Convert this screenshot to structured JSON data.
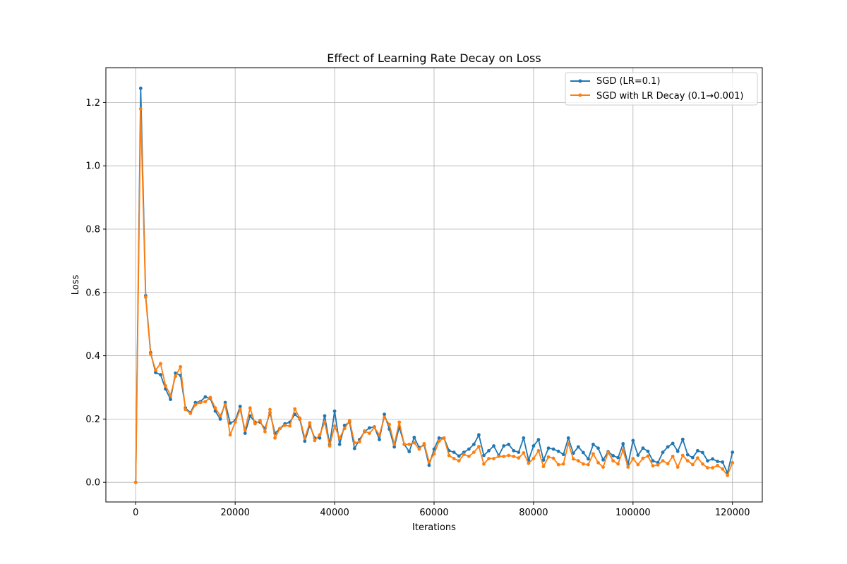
{
  "chart_data": {
    "type": "line",
    "title": "Effect of Learning Rate Decay on Loss",
    "xlabel": "Iterations",
    "ylabel": "Loss",
    "xlim": [
      -6000,
      126000
    ],
    "ylim": [
      -0.062,
      1.31
    ],
    "xticks": [
      0,
      20000,
      40000,
      60000,
      80000,
      100000,
      120000
    ],
    "yticks": [
      0.0,
      0.2,
      0.4,
      0.6,
      0.8,
      1.0,
      1.2
    ],
    "xtick_labels": [
      "0",
      "20000",
      "40000",
      "60000",
      "80000",
      "100000",
      "120000"
    ],
    "ytick_labels": [
      "0.0",
      "0.2",
      "0.4",
      "0.6",
      "0.8",
      "1.0",
      "1.2"
    ],
    "grid": true,
    "legend_position": "top-right",
    "x": [
      0,
      1000,
      2000,
      3000,
      4000,
      5000,
      6000,
      7000,
      8000,
      9000,
      10000,
      11000,
      12000,
      13000,
      14000,
      15000,
      16000,
      17000,
      18000,
      19000,
      20000,
      21000,
      22000,
      23000,
      24000,
      25000,
      26000,
      27000,
      28000,
      29000,
      30000,
      31000,
      32000,
      33000,
      34000,
      35000,
      36000,
      37000,
      38000,
      39000,
      40000,
      41000,
      42000,
      43000,
      44000,
      45000,
      46000,
      47000,
      48000,
      49000,
      50000,
      51000,
      52000,
      53000,
      54000,
      55000,
      56000,
      57000,
      58000,
      59000,
      60000,
      61000,
      62000,
      63000,
      64000,
      65000,
      66000,
      67000,
      68000,
      69000,
      70000,
      71000,
      72000,
      73000,
      74000,
      75000,
      76000,
      77000,
      78000,
      79000,
      80000,
      81000,
      82000,
      83000,
      84000,
      85000,
      86000,
      87000,
      88000,
      89000,
      90000,
      91000,
      92000,
      93000,
      94000,
      95000,
      96000,
      97000,
      98000,
      99000,
      100000,
      101000,
      102000,
      103000,
      104000,
      105000,
      106000,
      107000,
      108000,
      109000,
      110000,
      111000,
      112000,
      113000,
      114000,
      115000,
      116000,
      117000,
      118000,
      119000,
      120000
    ],
    "series": [
      {
        "name": "SGD (LR=0.1)",
        "color": "#1f77b4",
        "values": [
          0.0,
          1.245,
          0.59,
          0.41,
          0.347,
          0.34,
          0.295,
          0.262,
          0.345,
          0.338,
          0.235,
          0.22,
          0.252,
          0.255,
          0.27,
          0.265,
          0.225,
          0.2,
          0.252,
          0.187,
          0.195,
          0.24,
          0.155,
          0.21,
          0.19,
          0.19,
          0.17,
          0.22,
          0.155,
          0.17,
          0.185,
          0.19,
          0.215,
          0.2,
          0.13,
          0.18,
          0.14,
          0.14,
          0.21,
          0.12,
          0.225,
          0.12,
          0.18,
          0.19,
          0.107,
          0.135,
          0.16,
          0.172,
          0.175,
          0.135,
          0.215,
          0.168,
          0.112,
          0.175,
          0.12,
          0.097,
          0.142,
          0.11,
          0.118,
          0.054,
          0.105,
          0.14,
          0.14,
          0.1,
          0.095,
          0.083,
          0.095,
          0.105,
          0.12,
          0.15,
          0.085,
          0.1,
          0.115,
          0.085,
          0.115,
          0.12,
          0.1,
          0.095,
          0.14,
          0.07,
          0.115,
          0.135,
          0.07,
          0.108,
          0.105,
          0.098,
          0.088,
          0.14,
          0.092,
          0.112,
          0.094,
          0.074,
          0.12,
          0.108,
          0.071,
          0.097,
          0.084,
          0.078,
          0.122,
          0.056,
          0.132,
          0.086,
          0.108,
          0.098,
          0.068,
          0.062,
          0.095,
          0.112,
          0.123,
          0.098,
          0.136,
          0.087,
          0.078,
          0.1,
          0.094,
          0.068,
          0.074,
          0.066,
          0.064,
          0.03,
          0.095
        ]
      },
      {
        "name": "SGD with LR Decay (0.1→0.001)",
        "color": "#ff7f0e",
        "values": [
          0.0,
          1.18,
          0.585,
          0.405,
          0.355,
          0.375,
          0.305,
          0.275,
          0.335,
          0.365,
          0.23,
          0.218,
          0.245,
          0.252,
          0.255,
          0.268,
          0.235,
          0.21,
          0.245,
          0.15,
          0.19,
          0.23,
          0.165,
          0.235,
          0.185,
          0.195,
          0.16,
          0.23,
          0.14,
          0.17,
          0.18,
          0.178,
          0.232,
          0.203,
          0.14,
          0.188,
          0.132,
          0.15,
          0.19,
          0.115,
          0.178,
          0.14,
          0.17,
          0.195,
          0.125,
          0.128,
          0.162,
          0.155,
          0.173,
          0.15,
          0.205,
          0.183,
          0.12,
          0.19,
          0.12,
          0.12,
          0.125,
          0.105,
          0.122,
          0.065,
          0.09,
          0.13,
          0.14,
          0.085,
          0.075,
          0.068,
          0.088,
          0.082,
          0.095,
          0.113,
          0.058,
          0.075,
          0.075,
          0.082,
          0.082,
          0.085,
          0.082,
          0.077,
          0.093,
          0.06,
          0.075,
          0.1,
          0.05,
          0.08,
          0.076,
          0.056,
          0.058,
          0.123,
          0.074,
          0.068,
          0.058,
          0.056,
          0.09,
          0.062,
          0.048,
          0.095,
          0.068,
          0.058,
          0.102,
          0.048,
          0.075,
          0.056,
          0.076,
          0.083,
          0.052,
          0.055,
          0.068,
          0.059,
          0.082,
          0.048,
          0.085,
          0.068,
          0.056,
          0.077,
          0.058,
          0.046,
          0.046,
          0.053,
          0.042,
          0.022,
          0.062
        ]
      }
    ]
  }
}
